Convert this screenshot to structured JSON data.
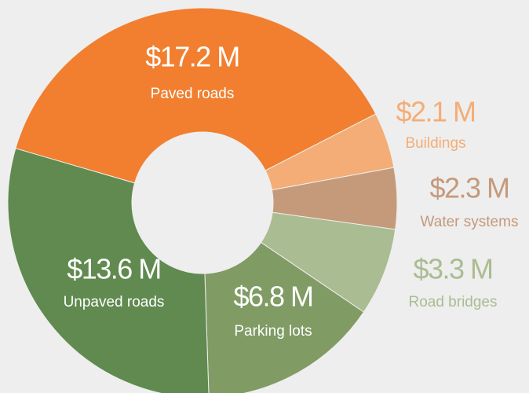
{
  "chart_data": {
    "type": "donut",
    "categories": [
      "Paved roads",
      "Buildings",
      "Water systems",
      "Road bridges",
      "Parking lots",
      "Unpaved roads"
    ],
    "values": [
      17.2,
      2.1,
      2.3,
      3.3,
      6.8,
      13.6
    ],
    "value_labels": [
      "$17.2 M",
      "$2.1 M",
      "$2.3 M",
      "$3.3 M",
      "$6.8 M",
      "$13.6 M"
    ],
    "colors": [
      "#f17f2f",
      "#f4ad76",
      "#c49a7b",
      "#aabc91",
      "#809b64",
      "#608a4f"
    ]
  }
}
